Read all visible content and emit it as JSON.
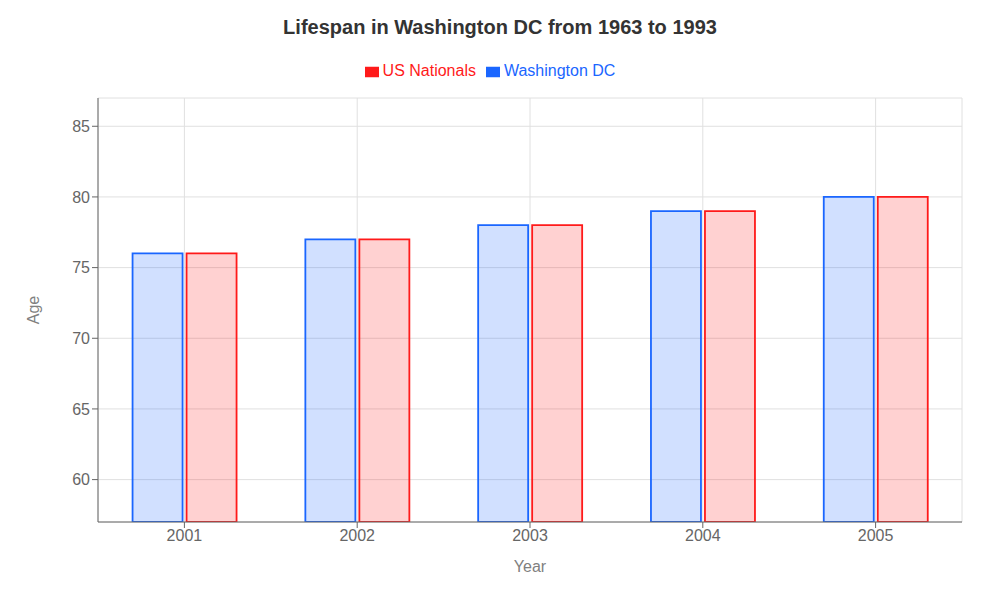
{
  "chart_data": {
    "type": "bar",
    "title": "Lifespan in Washington DC from 1963 to 1993",
    "xlabel": "Year",
    "ylabel": "Age",
    "categories": [
      "2001",
      "2002",
      "2003",
      "2004",
      "2005"
    ],
    "series": [
      {
        "name": "Washington DC",
        "color": "#1a66ff",
        "values": [
          76,
          77,
          78,
          79,
          80
        ]
      },
      {
        "name": "US Nationals",
        "color": "#ff1a1a",
        "values": [
          76,
          77,
          78,
          79,
          80
        ]
      }
    ],
    "ylim": [
      57,
      87
    ],
    "yticks": [
      60,
      65,
      70,
      75,
      80,
      85
    ],
    "grid": true,
    "legend": "top"
  }
}
